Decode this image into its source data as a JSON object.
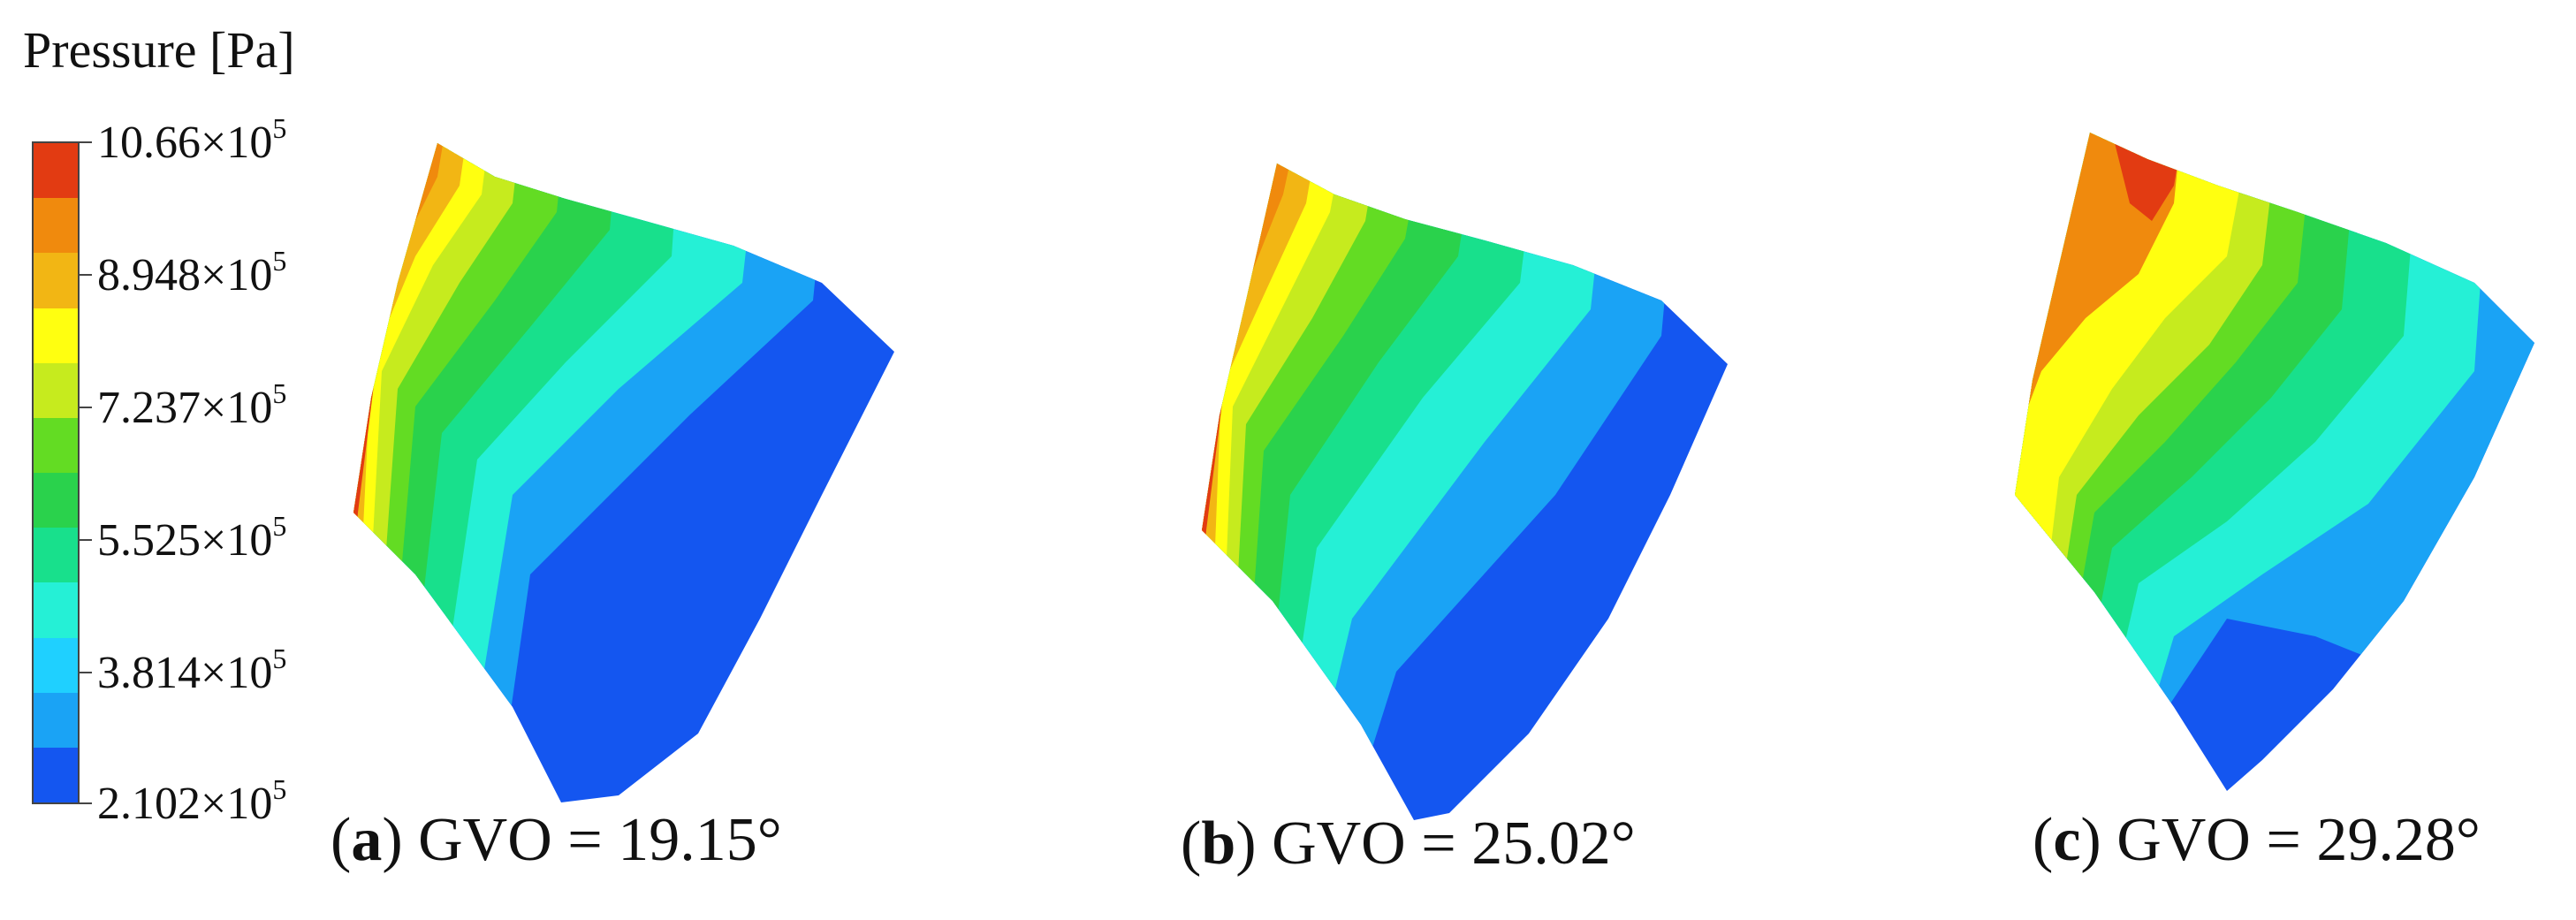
{
  "legend": {
    "title": "Pressure [Pa]",
    "exponent": "5",
    "labels": [
      "10.66×10",
      "8.948×10",
      "7.237×10",
      "5.525×10",
      "3.814×10",
      "2.102×10"
    ],
    "band_colors": [
      "#e23b12",
      "#f08a0d",
      "#f2b614",
      "#ffff10",
      "#c6eb1e",
      "#63dc23",
      "#2ad24c",
      "#18e08c",
      "#25f0d6",
      "#1fd0ff",
      "#1aa3f5",
      "#1456f0"
    ]
  },
  "panels": [
    {
      "letter": "a",
      "caption": "GVO = 19.15°",
      "left_contour_color": "#e23b12"
    },
    {
      "letter": "b",
      "caption": "GVO = 25.02°",
      "left_contour_color": "#e23b12"
    },
    {
      "letter": "c",
      "caption": "GVO = 29.28°",
      "left_contour_color": "#f08a0d"
    }
  ]
}
